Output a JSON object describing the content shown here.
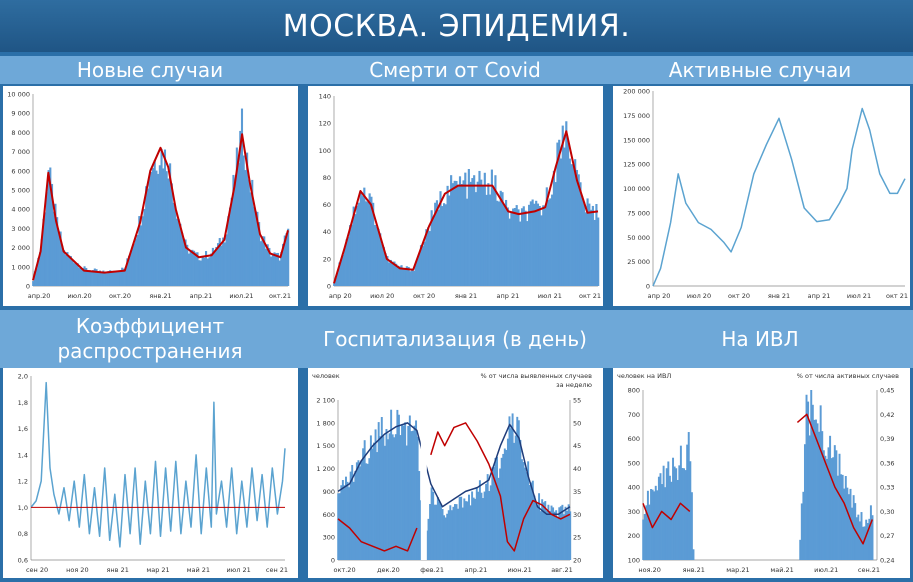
{
  "banner": "МОСКВА. ЭПИДЕМИЯ.",
  "titles": [
    "Новые случаи",
    "Смерти от Covid",
    "Активные случаи",
    "Коэффициент распространения",
    "Госпитализация (в день)",
    "На ИВЛ"
  ],
  "colors": {
    "bar": "#5b9bd5",
    "red": "#c00000",
    "navy": "#1f3c7a",
    "line": "#5ba3d0",
    "banner": "#2a659b"
  },
  "chart_data": [
    {
      "type": "bar",
      "title": "Новые случаи",
      "yticks": [
        "0",
        "1 000",
        "2 000",
        "3 000",
        "4 000",
        "5 000",
        "6 000",
        "7 000",
        "8 000",
        "9 000",
        "10 000"
      ],
      "ylim": [
        0,
        10000
      ],
      "xticks": [
        "апр.20",
        "июл.20",
        "окт.20",
        "янв.21",
        "апр.21",
        "июл.21",
        "окт.21"
      ],
      "series": [
        {
          "kind": "bars",
          "t": [
            0,
            0.03,
            0.06,
            0.09,
            0.12,
            0.2,
            0.28,
            0.36,
            0.42,
            0.46,
            0.5,
            0.53,
            0.56,
            0.6,
            0.65,
            0.7,
            0.75,
            0.79,
            0.82,
            0.85,
            0.89,
            0.93,
            0.97,
            1
          ],
          "v": [
            300,
            2000,
            6000,
            3500,
            1800,
            900,
            700,
            900,
            3500,
            6200,
            7000,
            6500,
            4200,
            2000,
            1500,
            1700,
            2500,
            5500,
            8200,
            5500,
            2800,
            1700,
            1500,
            3000
          ]
        },
        {
          "kind": "line",
          "t": [
            0,
            0.03,
            0.06,
            0.09,
            0.12,
            0.2,
            0.28,
            0.36,
            0.42,
            0.46,
            0.5,
            0.53,
            0.56,
            0.6,
            0.65,
            0.7,
            0.75,
            0.79,
            0.82,
            0.85,
            0.89,
            0.93,
            0.97,
            1
          ],
          "v": [
            300,
            1800,
            5900,
            3400,
            1800,
            800,
            700,
            800,
            3300,
            6000,
            7200,
            6200,
            4000,
            2000,
            1500,
            1600,
            2400,
            5200,
            7900,
            5400,
            2700,
            1700,
            1500,
            2900
          ]
        }
      ]
    },
    {
      "type": "bar",
      "title": "Смерти от Covid",
      "yticks": [
        "0",
        "20",
        "40",
        "60",
        "80",
        "100",
        "120",
        "140"
      ],
      "ylim": [
        0,
        140
      ],
      "xticks": [
        "апр 20",
        "июл 20",
        "окт 20",
        "янв 21",
        "апр 21",
        "июл 21",
        "окт 21"
      ],
      "series": [
        {
          "kind": "bars",
          "t": [
            0,
            0.04,
            0.1,
            0.14,
            0.2,
            0.25,
            0.3,
            0.36,
            0.42,
            0.47,
            0.52,
            0.6,
            0.66,
            0.7,
            0.76,
            0.8,
            0.84,
            0.88,
            0.92,
            0.96,
            1
          ],
          "v": [
            2,
            30,
            72,
            62,
            20,
            14,
            12,
            45,
            70,
            75,
            75,
            76,
            55,
            52,
            56,
            60,
            90,
            118,
            80,
            56,
            55
          ]
        },
        {
          "kind": "line",
          "t": [
            0,
            0.04,
            0.1,
            0.14,
            0.2,
            0.25,
            0.3,
            0.36,
            0.42,
            0.47,
            0.52,
            0.6,
            0.66,
            0.7,
            0.76,
            0.8,
            0.84,
            0.88,
            0.92,
            0.96,
            1
          ],
          "v": [
            2,
            28,
            70,
            60,
            20,
            13,
            12,
            44,
            68,
            74,
            74,
            74,
            55,
            53,
            55,
            58,
            88,
            114,
            78,
            54,
            55
          ]
        }
      ]
    },
    {
      "type": "line",
      "title": "Активные случаи",
      "yticks": [
        "0",
        "25 000",
        "50 000",
        "75 000",
        "100 000",
        "125 000",
        "150 000",
        "175 000",
        "200 000"
      ],
      "ylim": [
        0,
        200000
      ],
      "xticks": [
        "апр 20",
        "июл 20",
        "окт 20",
        "янв 21",
        "апр 21",
        "июл 21",
        "окт 21"
      ],
      "series": [
        {
          "kind": "line",
          "t": [
            0,
            0.03,
            0.07,
            0.1,
            0.13,
            0.18,
            0.23,
            0.28,
            0.31,
            0.35,
            0.4,
            0.45,
            0.5,
            0.55,
            0.6,
            0.65,
            0.7,
            0.74,
            0.77,
            0.79,
            0.83,
            0.86,
            0.9,
            0.94,
            0.97,
            1
          ],
          "v": [
            0,
            18000,
            65000,
            115000,
            85000,
            65000,
            58000,
            45000,
            35000,
            60000,
            115000,
            145000,
            172000,
            130000,
            80000,
            66000,
            68000,
            85000,
            100000,
            140000,
            182000,
            160000,
            115000,
            95000,
            95000,
            110000
          ]
        }
      ]
    },
    {
      "type": "line",
      "title": "Коэффициент распространения",
      "yticks": [
        "0,6",
        "0,8",
        "1,0",
        "1,2",
        "1,4",
        "1,6",
        "1,8",
        "2,0"
      ],
      "ylim": [
        0.6,
        2.0
      ],
      "xticks": [
        "сен 20",
        "ноя 20",
        "янв 21",
        "мар 21",
        "май 21",
        "июл 21",
        "сен 21"
      ],
      "series": [
        {
          "kind": "line",
          "t": [
            0,
            0.02,
            0.04,
            0.06,
            0.075,
            0.09,
            0.11,
            0.13,
            0.15,
            0.17,
            0.19,
            0.21,
            0.23,
            0.25,
            0.27,
            0.29,
            0.31,
            0.33,
            0.35,
            0.37,
            0.39,
            0.41,
            0.43,
            0.45,
            0.47,
            0.49,
            0.51,
            0.53,
            0.55,
            0.57,
            0.59,
            0.61,
            0.63,
            0.65,
            0.67,
            0.69,
            0.71,
            0.72,
            0.73,
            0.75,
            0.77,
            0.79,
            0.81,
            0.83,
            0.85,
            0.87,
            0.89,
            0.91,
            0.93,
            0.95,
            0.97,
            0.99,
            1
          ],
          "v": [
            1.0,
            1.05,
            1.2,
            1.95,
            1.3,
            1.1,
            0.95,
            1.15,
            0.9,
            1.2,
            0.85,
            1.25,
            0.8,
            1.15,
            0.78,
            1.3,
            0.75,
            1.1,
            0.7,
            1.25,
            0.8,
            1.3,
            0.72,
            1.2,
            0.8,
            1.35,
            0.78,
            1.3,
            0.82,
            1.35,
            0.8,
            1.2,
            0.85,
            1.4,
            0.8,
            1.3,
            0.85,
            1.8,
            0.95,
            1.2,
            0.85,
            1.3,
            0.8,
            1.2,
            0.85,
            1.3,
            0.9,
            1.25,
            0.85,
            1.3,
            0.95,
            1.2,
            1.45
          ]
        },
        {
          "kind": "ref",
          "v": 1.0
        }
      ]
    },
    {
      "type": "bar",
      "title": "Госпитализация (в день)",
      "ylabel_left": "человек",
      "ylabel_right": "% от числа выявленных случаев за неделю",
      "yticks": [
        "0",
        "300",
        "600",
        "900",
        "1 200",
        "1 500",
        "1 800",
        "2 100"
      ],
      "ylim": [
        0,
        2100
      ],
      "yticks_right": [
        "20",
        "25",
        "30",
        "35",
        "40",
        "45",
        "50",
        "55"
      ],
      "ylim_right": [
        20,
        55
      ],
      "xticks": [
        "окт.20",
        "дек.20",
        "фев.21",
        "апр.21",
        "июн.21",
        "авг.21"
      ],
      "series": [
        {
          "kind": "bars",
          "t": [
            0,
            0.05,
            0.1,
            0.15,
            0.2,
            0.25,
            0.3,
            0.34,
            0.37,
            0.4,
            0.45,
            0.5,
            0.55,
            0.6,
            0.65,
            0.7,
            0.74,
            0.78,
            0.82,
            0.86,
            0.9,
            0.95,
            1
          ],
          "v": [
            800,
            1100,
            1300,
            1600,
            1750,
            1850,
            1750,
            1600,
            0,
            900,
            600,
            650,
            800,
            900,
            1000,
            1300,
            1850,
            1700,
            1200,
            800,
            650,
            600,
            700
          ]
        },
        {
          "kind": "line",
          "axis": "left",
          "t": [
            0,
            0.05,
            0.1,
            0.15,
            0.2,
            0.25,
            0.3,
            0.34,
            0.4,
            0.45,
            0.5,
            0.55,
            0.6,
            0.65,
            0.7,
            0.74,
            0.78,
            0.82,
            0.86,
            0.9,
            0.95,
            1
          ],
          "v": [
            900,
            1000,
            1300,
            1500,
            1650,
            1750,
            1800,
            1700,
            1000,
            700,
            800,
            900,
            950,
            1050,
            1500,
            1780,
            1600,
            1100,
            700,
            600,
            600,
            700
          ]
        },
        {
          "kind": "line",
          "axis": "right",
          "t": [
            0,
            0.05,
            0.1,
            0.15,
            0.2,
            0.25,
            0.3,
            0.34,
            null,
            0.4,
            0.43,
            0.46,
            0.5,
            0.55,
            0.6,
            0.65,
            0.7,
            0.73,
            0.76,
            0.8,
            0.84,
            0.88,
            0.92,
            0.96,
            1
          ],
          "v": [
            29,
            27,
            24,
            23,
            22,
            23,
            22,
            27,
            null,
            43,
            48,
            45,
            49,
            50,
            46,
            41,
            34,
            24,
            22,
            29,
            33,
            32,
            30,
            29,
            30
          ]
        }
      ]
    },
    {
      "type": "bar",
      "title": "На ИВЛ",
      "ylabel_left": "человек на ИВЛ",
      "ylabel_right": "% от числа активных случаев",
      "yticks": [
        "100",
        "200",
        "300",
        "400",
        "500",
        "600",
        "700",
        "800"
      ],
      "ylim": [
        100,
        800
      ],
      "yticks_right": [
        "0,24",
        "0,27",
        "0,30",
        "0,33",
        "0,36",
        "0,39",
        "0,42",
        "0,45"
      ],
      "ylim_right": [
        0.24,
        0.45
      ],
      "xticks": [
        "ноя.20",
        "янв.21",
        "мар.21",
        "май.21",
        "июл.21",
        "сен.21"
      ],
      "series": [
        {
          "kind": "bars",
          "t": [
            0,
            0.05,
            0.1,
            0.15,
            0.2,
            0.22,
            0.66,
            0.7,
            0.74,
            0.78,
            0.82,
            0.86,
            0.9,
            0.94,
            0.98
          ],
          "v": [
            300,
            400,
            450,
            500,
            560,
            0,
            0,
            720,
            680,
            600,
            520,
            420,
            330,
            250,
            300
          ]
        },
        {
          "kind": "line",
          "axis": "right",
          "t": [
            0,
            0.04,
            0.08,
            0.12,
            0.16,
            0.2,
            null,
            0.66,
            0.7,
            0.74,
            0.78,
            0.82,
            0.86,
            0.9,
            0.94,
            0.98
          ],
          "v": [
            0.31,
            0.28,
            0.3,
            0.29,
            0.31,
            0.3,
            null,
            0.41,
            0.42,
            0.39,
            0.36,
            0.33,
            0.31,
            0.28,
            0.26,
            0.29
          ]
        }
      ]
    }
  ]
}
